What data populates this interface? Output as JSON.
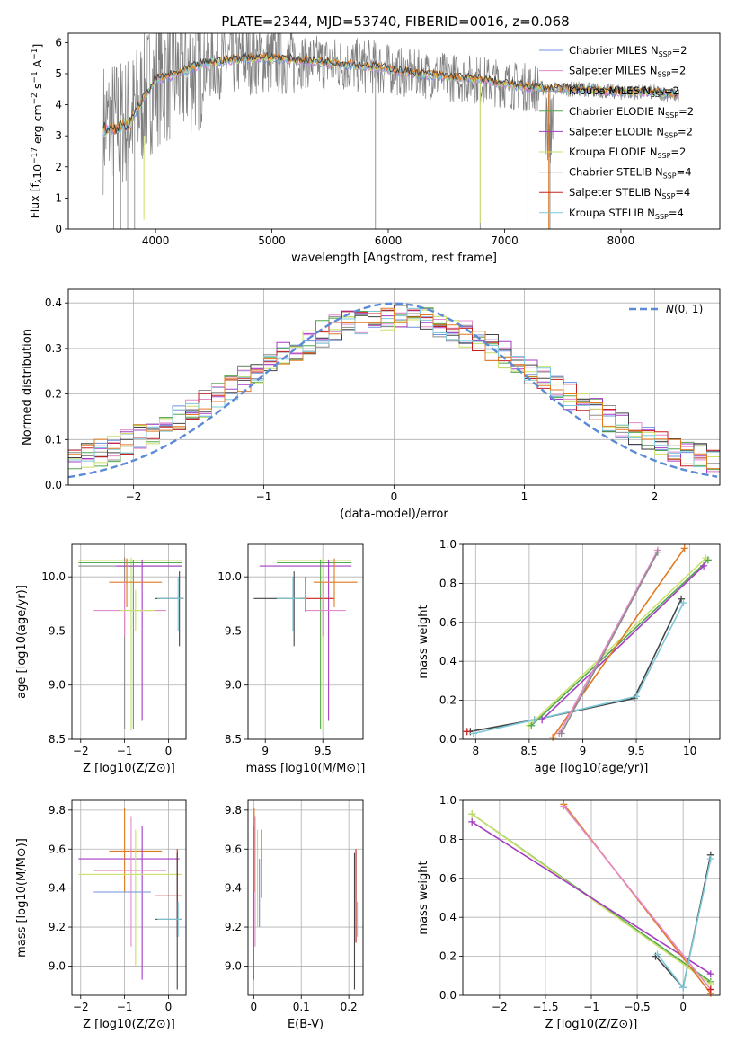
{
  "figure_title": "PLATE=2344, MJD=53740, FIBERID=0016, z=0.068",
  "colors": {
    "Chabrier MILES": "#6f8fdc",
    "Salpeter MILES": "#e28bcc",
    "Kroupa MILES": "#8c8c8c",
    "Chabrier ELODIE": "#52a84d",
    "Salpeter ELODIE": "#a43dc4",
    "Kroupa ELODIE": "#c9e06a",
    "Chabrier STELIB": "#444444",
    "Salpeter STELIB": "#c82020",
    "Kroupa STELIB": "#7ec8d8",
    "orange_extra": "#e07a20",
    "normal_curve": "#5b8ad6"
  },
  "chart_data": [
    {
      "id": "spectrum",
      "type": "line",
      "title": "PLATE=2344, MJD=53740, FIBERID=0016, z=0.068",
      "xlabel": "wavelength [Angstrom, rest frame]",
      "ylabel": "Flux [f_λ 10^-17 erg cm^-2 s^-1 A^-1]",
      "xlim": [
        3250,
        8850
      ],
      "ylim": [
        0,
        6.3
      ],
      "xticks": [
        4000,
        5000,
        6000,
        7000,
        8000
      ],
      "yticks": [
        0,
        1,
        2,
        3,
        4,
        5,
        6
      ],
      "legend_position": "top-right",
      "legend": [
        {
          "name": "Chabrier MILES",
          "sub": "N",
          "subsub": "SSP",
          "val": "=2"
        },
        {
          "name": "Salpeter MILES",
          "sub": "N",
          "subsub": "SSP",
          "val": "=2"
        },
        {
          "name": "Kroupa MILES",
          "sub": "N",
          "subsub": "SSP",
          "val": "=2"
        },
        {
          "name": "Chabrier ELODIE",
          "sub": "N",
          "subsub": "SSP",
          "val": "=2"
        },
        {
          "name": "Salpeter ELODIE",
          "sub": "N",
          "subsub": "SSP",
          "val": "=2"
        },
        {
          "name": "Kroupa ELODIE",
          "sub": "N",
          "subsub": "SSP",
          "val": "=2"
        },
        {
          "name": "Chabrier STELIB",
          "sub": "N",
          "subsub": "SSP",
          "val": "=4"
        },
        {
          "name": "Salpeter STELIB",
          "sub": "N",
          "subsub": "SSP",
          "val": "=4"
        },
        {
          "name": "Kroupa STELIB",
          "sub": "N",
          "subsub": "SSP",
          "val": "=4"
        }
      ],
      "model_continuum": [
        [
          3550,
          3.3
        ],
        [
          3700,
          3.4
        ],
        [
          3800,
          3.6
        ],
        [
          3900,
          4.2
        ],
        [
          4000,
          4.8
        ],
        [
          4200,
          5.0
        ],
        [
          4400,
          5.3
        ],
        [
          4600,
          5.4
        ],
        [
          4800,
          5.5
        ],
        [
          5000,
          5.5
        ],
        [
          5300,
          5.4
        ],
        [
          5600,
          5.3
        ],
        [
          5900,
          5.2
        ],
        [
          6200,
          5.0
        ],
        [
          6500,
          4.9
        ],
        [
          6800,
          4.8
        ],
        [
          7100,
          4.6
        ],
        [
          7400,
          4.5
        ],
        [
          7700,
          4.5
        ],
        [
          8000,
          4.4
        ],
        [
          8300,
          4.4
        ],
        [
          8500,
          4.3
        ]
      ]
    },
    {
      "id": "residuals",
      "type": "line",
      "xlabel": "(data-model)/error",
      "ylabel": "Normed distribution",
      "xlim": [
        -2.5,
        2.5
      ],
      "ylim": [
        0,
        0.43
      ],
      "xticks": [
        -2,
        -1,
        0,
        1,
        2
      ],
      "yticks": [
        0.0,
        0.1,
        0.2,
        0.3,
        0.4
      ],
      "grid": true,
      "legend_position": "top-right",
      "legend": [
        {
          "name": "N(0, 1)"
        }
      ],
      "normal_mean": 0,
      "normal_sigma": 1
    },
    {
      "id": "age_vs_Z",
      "type": "scatter",
      "xlabel": "Z [log10(Z/Z⊙)]",
      "ylabel": "age  [log10(age/yr)]",
      "xlim": [
        -2.2,
        0.4
      ],
      "ylim": [
        8.5,
        10.3
      ],
      "xticks": [
        -2,
        -1,
        0
      ],
      "yticks": [
        8.5,
        9.0,
        9.5,
        10.0
      ],
      "grid": true,
      "crosses": [
        {
          "c": "Kroupa ELODIE",
          "x": -0.85,
          "xl": -2.05,
          "xh": 0.3,
          "y": 10.15,
          "yl": 8.58,
          "yh": 10.18
        },
        {
          "c": "Chabrier ELODIE",
          "x": -0.8,
          "xl": -2.05,
          "xh": 0.3,
          "y": 10.13,
          "yl": 8.6,
          "yh": 10.16
        },
        {
          "c": "Kroupa MILES",
          "x": -1.0,
          "xl": -2.05,
          "xh": 0.3,
          "y": 10.1,
          "yl": 8.6,
          "yh": 10.18
        },
        {
          "c": "Salpeter ELODIE",
          "x": -0.6,
          "xl": -1.2,
          "xh": 0.3,
          "y": 10.1,
          "yl": 8.67,
          "yh": 10.16
        },
        {
          "c": "orange_extra",
          "x": -0.95,
          "xl": -1.35,
          "xh": -0.15,
          "y": 9.95,
          "yl": 9.72,
          "yh": 10.17
        },
        {
          "c": "Chabrier STELIB",
          "x": 0.25,
          "xl": -0.3,
          "xh": 0.35,
          "y": 9.8,
          "yl": 9.36,
          "yh": 10.05
        },
        {
          "c": "Kroupa STELIB",
          "x": 0.22,
          "xl": -0.25,
          "xh": 0.35,
          "y": 9.8,
          "yl": 9.5,
          "yh": 10.0
        },
        {
          "c": "Salpeter MILES",
          "x": -1.0,
          "xl": -1.7,
          "xh": -0.05,
          "y": 9.69,
          "yl": 9.45,
          "yh": 9.95
        },
        {
          "c": "Kroupa ELODIE",
          "x": -0.75,
          "xl": -1.1,
          "xh": -0.3,
          "y": 9.69,
          "yl": 9.5,
          "yh": 9.88
        }
      ]
    },
    {
      "id": "age_vs_mass",
      "type": "scatter",
      "xlabel": "mass [log10(M/M⊙)]",
      "ylabel": "",
      "xlim": [
        8.85,
        9.85
      ],
      "ylim": [
        8.5,
        10.3
      ],
      "xticks": [
        9.0,
        9.5
      ],
      "yticks": [
        8.5,
        9.0,
        9.5,
        10.0
      ],
      "grid": true,
      "crosses": [
        {
          "c": "Kroupa ELODIE",
          "x": 9.5,
          "xl": 9.1,
          "xh": 9.75,
          "y": 10.15,
          "yl": 8.58,
          "yh": 10.18
        },
        {
          "c": "Chabrier ELODIE",
          "x": 9.48,
          "xl": 9.1,
          "xh": 9.75,
          "y": 10.13,
          "yl": 8.6,
          "yh": 10.16
        },
        {
          "c": "Salpeter ELODIE",
          "x": 9.55,
          "xl": 8.95,
          "xh": 9.75,
          "y": 10.1,
          "yl": 8.67,
          "yh": 10.16
        },
        {
          "c": "Salpeter STELIB",
          "x": 9.35,
          "xl": 9.3,
          "xh": 9.6,
          "y": 9.8,
          "yl": 9.68,
          "yh": 10.0
        },
        {
          "c": "Chabrier STELIB",
          "x": 9.25,
          "xl": 8.9,
          "xh": 9.35,
          "y": 9.8,
          "yl": 9.36,
          "yh": 10.05
        },
        {
          "c": "Kroupa STELIB",
          "x": 9.24,
          "xl": 9.1,
          "xh": 9.35,
          "y": 9.8,
          "yl": 9.5,
          "yh": 10.0
        },
        {
          "c": "orange_extra",
          "x": 9.6,
          "xl": 9.42,
          "xh": 9.8,
          "y": 9.95,
          "yl": 9.72,
          "yh": 10.17
        },
        {
          "c": "Salpeter MILES",
          "x": 9.5,
          "xl": 9.35,
          "xh": 9.7,
          "y": 9.69,
          "yl": 9.45,
          "yh": 9.95
        }
      ]
    },
    {
      "id": "weight_vs_age",
      "type": "line",
      "xlabel": "age  [log10(age/yr)]",
      "ylabel": "mass weight",
      "xlim": [
        7.88,
        10.28
      ],
      "ylim": [
        0,
        1.0
      ],
      "xticks": [
        8.0,
        8.5,
        9.0,
        9.5,
        10.0
      ],
      "yticks": [
        0.0,
        0.2,
        0.4,
        0.6,
        0.8,
        1.0
      ],
      "grid": true,
      "series": [
        {
          "c": "Chabrier STELIB",
          "x": [
            7.95,
            8.55,
            9.48,
            9.92
          ],
          "y": [
            0.04,
            0.1,
            0.21,
            0.72
          ]
        },
        {
          "c": "Kroupa STELIB",
          "x": [
            7.98,
            8.55,
            9.5,
            9.94
          ],
          "y": [
            0.03,
            0.1,
            0.22,
            0.7
          ]
        },
        {
          "c": "Salpeter STELIB",
          "x": [
            7.92
          ],
          "y": [
            0.04
          ]
        },
        {
          "c": "Kroupa ELODIE",
          "x": [
            8.5,
            10.15
          ],
          "y": [
            0.07,
            0.93
          ]
        },
        {
          "c": "Chabrier ELODIE",
          "x": [
            8.52,
            10.17
          ],
          "y": [
            0.07,
            0.92
          ]
        },
        {
          "c": "Salpeter ELODIE",
          "x": [
            8.62,
            10.13
          ],
          "y": [
            0.1,
            0.89
          ]
        },
        {
          "c": "orange_extra",
          "x": [
            8.72,
            9.95
          ],
          "y": [
            0.01,
            0.98
          ]
        },
        {
          "c": "Salpeter MILES",
          "x": [
            8.78,
            9.7
          ],
          "y": [
            0.03,
            0.97
          ]
        },
        {
          "c": "Kroupa MILES",
          "x": [
            8.8,
            9.7
          ],
          "y": [
            0.03,
            0.96
          ]
        }
      ]
    },
    {
      "id": "mass_vs_Z",
      "type": "scatter",
      "xlabel": "Z [log10(Z/Z⊙)]",
      "ylabel": "mass [log10(M/M⊙)]",
      "xlim": [
        -2.2,
        0.4
      ],
      "ylim": [
        8.85,
        9.85
      ],
      "xticks": [
        -2,
        -1,
        0
      ],
      "yticks": [
        9.0,
        9.2,
        9.4,
        9.6,
        9.8
      ],
      "grid": true,
      "crosses": [
        {
          "c": "orange_extra",
          "x": -1.0,
          "xl": -1.35,
          "xh": -0.15,
          "y": 9.59,
          "yl": 9.38,
          "yh": 9.81
        },
        {
          "c": "Salpeter ELODIE",
          "x": -0.6,
          "xl": -2.05,
          "xh": 0.25,
          "y": 9.55,
          "yl": 8.93,
          "yh": 9.72
        },
        {
          "c": "Salpeter MILES",
          "x": -0.85,
          "xl": -1.7,
          "xh": -0.05,
          "y": 9.49,
          "yl": 9.1,
          "yh": 9.77
        },
        {
          "c": "Kroupa ELODIE",
          "x": -0.75,
          "xl": -2.05,
          "xh": 0.3,
          "y": 9.47,
          "yl": 9.0,
          "yh": 9.7
        },
        {
          "c": "Chabrier MILES",
          "x": -0.9,
          "xl": -1.7,
          "xh": -0.4,
          "y": 9.38,
          "yl": 9.2,
          "yh": 9.55
        },
        {
          "c": "Salpeter STELIB",
          "x": 0.2,
          "xl": -0.3,
          "xh": 0.3,
          "y": 9.36,
          "yl": 9.15,
          "yh": 9.6
        },
        {
          "c": "Chabrier STELIB",
          "x": 0.2,
          "xl": -0.3,
          "xh": 0.3,
          "y": 9.24,
          "yl": 8.88,
          "yh": 9.58
        },
        {
          "c": "Kroupa STELIB",
          "x": 0.22,
          "xl": -0.25,
          "xh": 0.3,
          "y": 9.24,
          "yl": 9.15,
          "yh": 9.33
        }
      ]
    },
    {
      "id": "mass_vs_ebv",
      "type": "scatter",
      "xlabel": "E(B-V)",
      "ylabel": "",
      "xlim": [
        -0.012,
        0.23
      ],
      "ylim": [
        8.85,
        9.85
      ],
      "xticks": [
        0.0,
        0.1,
        0.2
      ],
      "yticks": [
        9.0,
        9.2,
        9.4,
        9.6,
        9.8
      ],
      "grid": true,
      "crosses": [
        {
          "c": "Salpeter ELODIE",
          "x": 0.0,
          "xl": 0.0,
          "xh": 0.0,
          "y": 9.55,
          "yl": 8.93,
          "yh": 9.72
        },
        {
          "c": "orange_extra",
          "x": 0.001,
          "xl": 0.001,
          "xh": 0.001,
          "y": 9.59,
          "yl": 9.38,
          "yh": 9.81
        },
        {
          "c": "Salpeter MILES",
          "x": 0.003,
          "xl": 0.003,
          "xh": 0.003,
          "y": 9.49,
          "yl": 9.1,
          "yh": 9.77
        },
        {
          "c": "Kroupa ELODIE",
          "x": 0.008,
          "xl": 0.008,
          "xh": 0.008,
          "y": 9.47,
          "yl": 9.2,
          "yh": 9.7
        },
        {
          "c": "Chabrier MILES",
          "x": 0.012,
          "xl": 0.012,
          "xh": 0.012,
          "y": 9.38,
          "yl": 9.2,
          "yh": 9.55
        },
        {
          "c": "Kroupa MILES",
          "x": 0.016,
          "xl": 0.016,
          "xh": 0.016,
          "y": 9.5,
          "yl": 9.35,
          "yh": 9.7
        },
        {
          "c": "Salpeter STELIB",
          "x": 0.215,
          "xl": 0.215,
          "xh": 0.215,
          "y": 9.36,
          "yl": 9.12,
          "yh": 9.6
        },
        {
          "c": "Chabrier STELIB",
          "x": 0.212,
          "xl": 0.212,
          "xh": 0.212,
          "y": 9.24,
          "yl": 8.88,
          "yh": 9.58
        },
        {
          "c": "Kroupa STELIB",
          "x": 0.218,
          "xl": 0.218,
          "xh": 0.218,
          "y": 9.24,
          "yl": 9.15,
          "yh": 9.33
        }
      ]
    },
    {
      "id": "weight_vs_Z",
      "type": "line",
      "xlabel": "Z [log10(Z/Z⊙)]",
      "ylabel": "mass weight",
      "xlim": [
        -2.4,
        0.4
      ],
      "ylim": [
        0,
        1.0
      ],
      "xticks": [
        -2.0,
        -1.5,
        -1.0,
        -0.5,
        0.0
      ],
      "yticks": [
        0.0,
        0.2,
        0.4,
        0.6,
        0.8,
        1.0
      ],
      "grid": true,
      "series": [
        {
          "c": "Chabrier ELODIE",
          "x": [
            -2.3,
            0.3
          ],
          "y": [
            0.93,
            0.07
          ]
        },
        {
          "c": "Kroupa ELODIE",
          "x": [
            -2.3,
            0.3
          ],
          "y": [
            0.93,
            0.06
          ]
        },
        {
          "c": "Salpeter ELODIE",
          "x": [
            -2.3,
            0.3
          ],
          "y": [
            0.89,
            0.11
          ]
        },
        {
          "c": "orange_extra",
          "x": [
            -1.3,
            0.3
          ],
          "y": [
            0.98,
            0.01
          ]
        },
        {
          "c": "Salpeter MILES",
          "x": [
            -1.3,
            0.3
          ],
          "y": [
            0.97,
            0.03
          ]
        },
        {
          "c": "Chabrier STELIB",
          "x": [
            -0.3,
            0.0,
            0.3
          ],
          "y": [
            0.2,
            0.04,
            0.72
          ]
        },
        {
          "c": "Kroupa STELIB",
          "x": [
            -0.28,
            0.0,
            0.3
          ],
          "y": [
            0.21,
            0.04,
            0.7
          ]
        },
        {
          "c": "Salpeter STELIB",
          "x": [
            0.3
          ],
          "y": [
            0.03
          ]
        }
      ]
    }
  ]
}
